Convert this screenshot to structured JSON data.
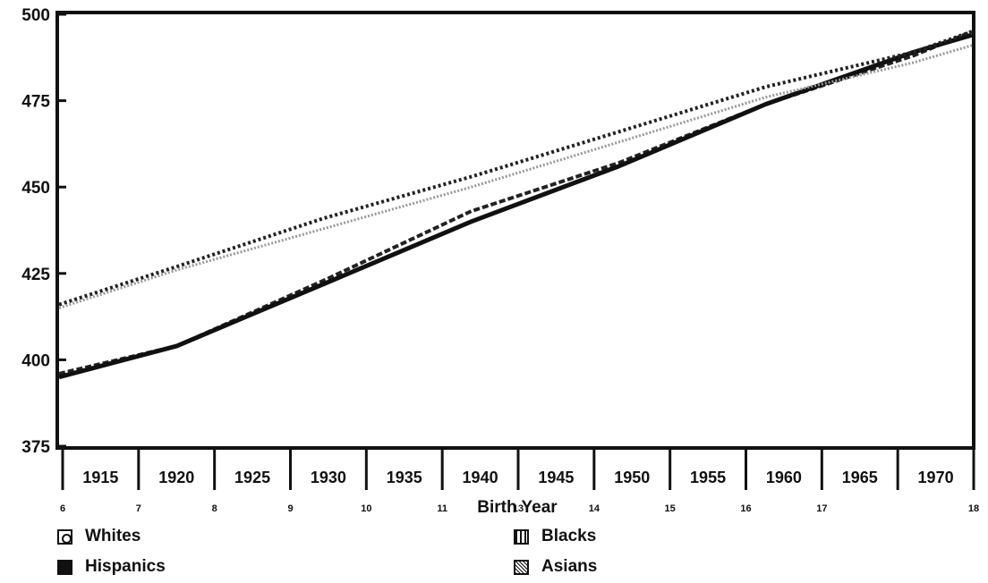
{
  "chart_data": {
    "type": "line",
    "title": "",
    "xlabel": "Birth Year",
    "ylabel": "",
    "x_ticks": [
      "1915",
      "1920",
      "1925",
      "1930",
      "1935",
      "1940",
      "1945",
      "1950",
      "1955",
      "1960",
      "1965",
      "1970"
    ],
    "x_index_labels": [
      "6",
      "7",
      "8",
      "9",
      "10",
      "11",
      "13",
      "14",
      "15",
      "16",
      "17",
      "18"
    ],
    "y_ticks": [
      375,
      400,
      425,
      450,
      475,
      500
    ],
    "xlim": [
      1912,
      1974
    ],
    "ylim": [
      375,
      500
    ],
    "grid": false,
    "legend_position": "bottom",
    "series": [
      {
        "name": "Whites",
        "x": [
          1912,
          1920,
          1930,
          1940,
          1950,
          1960,
          1970,
          1974
        ],
        "y": [
          396,
          404,
          423,
          443,
          457,
          474,
          488,
          495
        ]
      },
      {
        "name": "Hispanics",
        "x": [
          1912,
          1920,
          1930,
          1940,
          1950,
          1960,
          1970,
          1974
        ],
        "y": [
          395,
          404,
          422,
          440,
          456,
          474,
          489,
          494
        ]
      },
      {
        "name": "Blacks",
        "x": [
          1912,
          1920,
          1930,
          1940,
          1950,
          1960,
          1970,
          1974
        ],
        "y": [
          416,
          427,
          441,
          453,
          466,
          479,
          489,
          495
        ]
      },
      {
        "name": "Asians",
        "x": [
          1912,
          1920,
          1930,
          1940,
          1950,
          1960,
          1970,
          1974
        ],
        "y": [
          415,
          426,
          438,
          450,
          463,
          476,
          486,
          491
        ]
      }
    ]
  }
}
